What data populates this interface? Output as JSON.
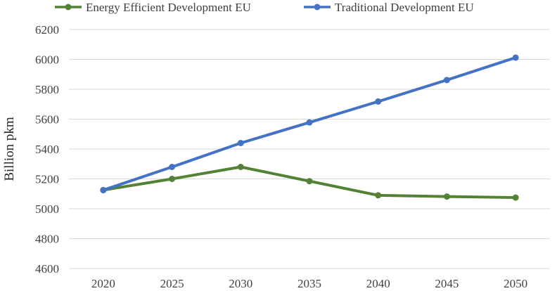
{
  "chart_data": {
    "type": "line",
    "categories": [
      "2020",
      "2025",
      "2030",
      "2035",
      "2040",
      "2045",
      "2050"
    ],
    "ylabel": "Billion pkm",
    "xlabel": "",
    "ylim": [
      4600,
      6200
    ],
    "yticks": [
      4600,
      4800,
      5000,
      5200,
      5400,
      5600,
      5800,
      6000,
      6200
    ],
    "grid": true,
    "legend_position": "top",
    "series": [
      {
        "name": "Energy Efficient Development EU",
        "color": "#548235",
        "values": [
          5125,
          5200,
          5280,
          5185,
          5090,
          5082,
          5075
        ]
      },
      {
        "name": "Traditional Development EU",
        "color": "#4472c4",
        "values": [
          5125,
          5280,
          5440,
          5578,
          5718,
          5862,
          6012
        ]
      }
    ]
  }
}
